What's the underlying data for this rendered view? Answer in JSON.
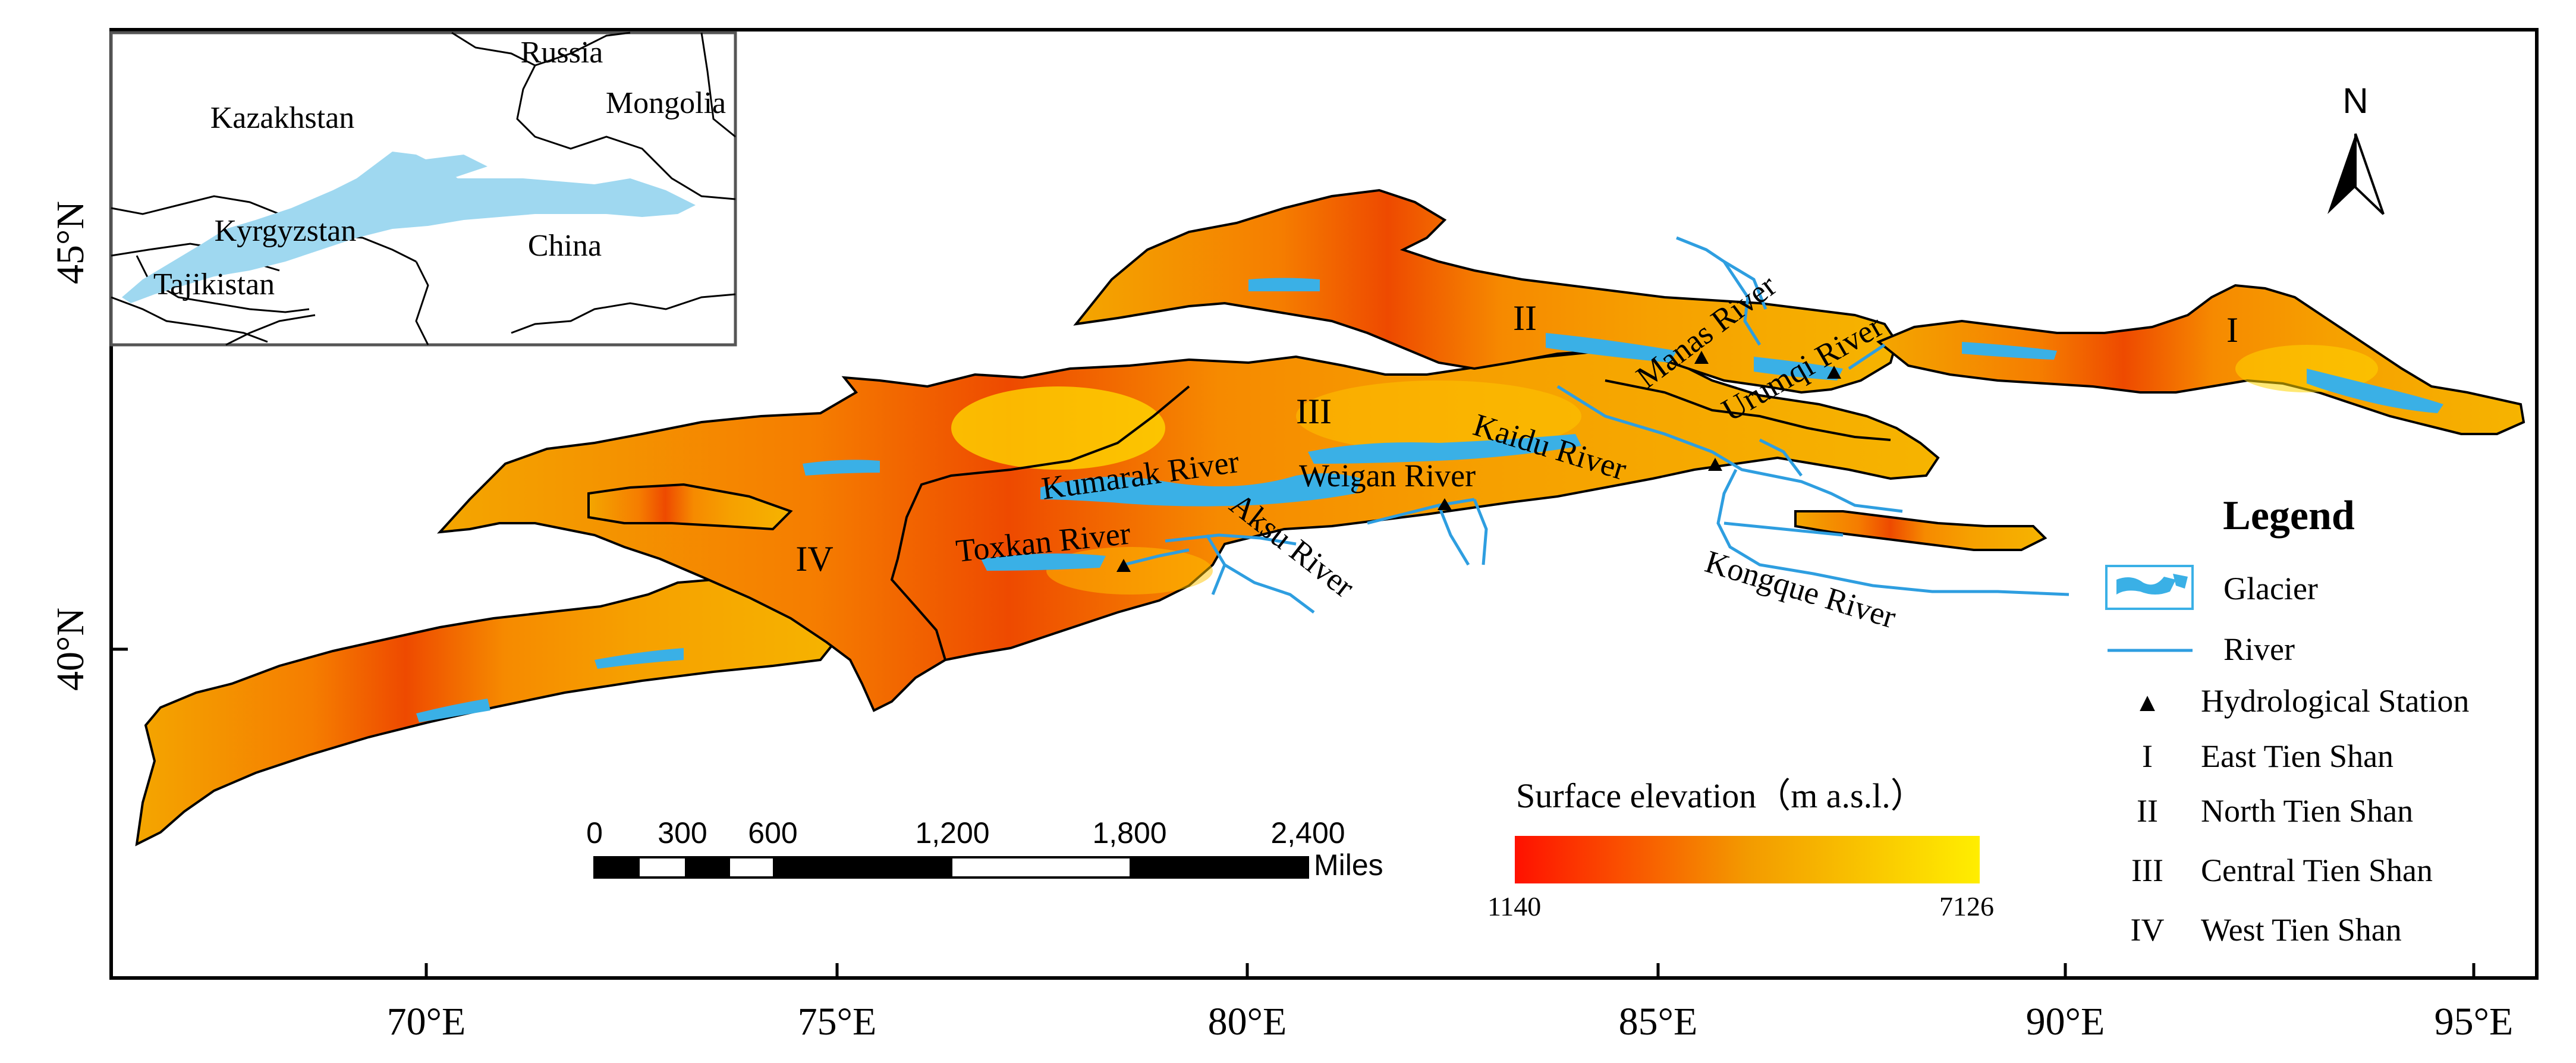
{
  "colors": {
    "glacier": "#3ab0e6",
    "river": "#2e9ee0",
    "inset_land": "#9fd8f0",
    "elev_low": "#ff1100",
    "elev_mid": "#f39a00",
    "elev_high": "#ffee00"
  },
  "axes": {
    "lon_ticks": [
      "70°E",
      "75°E",
      "80°E",
      "85°E",
      "90°E",
      "95°E"
    ],
    "lat_ticks": [
      "45°N",
      "40°N"
    ]
  },
  "north_arrow": {
    "label": "N"
  },
  "inset": {
    "countries": [
      "Russia",
      "Kazakhstan",
      "Mongolia",
      "Kyrgyzstan",
      "China",
      "Tajikistan"
    ]
  },
  "regions": {
    "I": "I",
    "II": "II",
    "III": "III",
    "IV": "IV"
  },
  "rivers": {
    "manas": "Manas River",
    "urumqi": "Urumqi River",
    "kaidu": "Kaidu River",
    "kumarak": "Kumarak River",
    "weigan": "Weigan River",
    "aksu": "Aksu River",
    "toxkan": "Toxkan River",
    "kongque": "Kongque River"
  },
  "scale_bar": {
    "labels": [
      "0",
      "300",
      "600",
      "1,200",
      "1,800",
      "2,400"
    ],
    "unit": "Miles"
  },
  "colorbar": {
    "title": "Surface elevation（m a.s.l.）",
    "min": "1140",
    "max": "7126"
  },
  "legend": {
    "title": "Legend",
    "items": [
      {
        "symbol": "glacier",
        "label": "Glacier"
      },
      {
        "symbol": "river",
        "label": "River"
      },
      {
        "symbol": "▲",
        "label": "Hydrological Station"
      },
      {
        "symbol": "I",
        "label": "East Tien Shan"
      },
      {
        "symbol": "II",
        "label": "North Tien Shan"
      },
      {
        "symbol": "III",
        "label": "Central Tien Shan"
      },
      {
        "symbol": "IV",
        "label": "West Tien Shan"
      }
    ]
  }
}
